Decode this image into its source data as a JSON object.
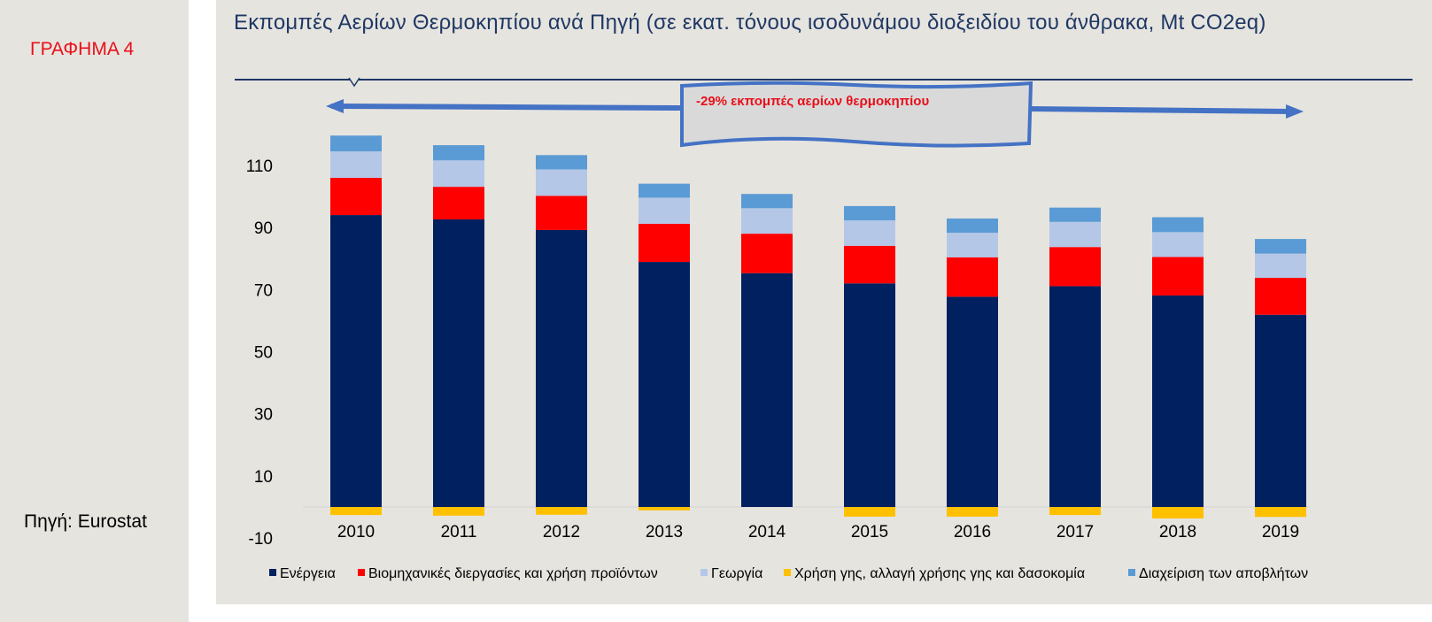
{
  "figure_label": "ΓΡΑΦΗΜΑ 4",
  "source": "Πηγή: Eurostat",
  "chart_data": {
    "type": "bar",
    "stacked": true,
    "title": "Εκπομπές Αερίων Θερμοκηπίου ανά Πηγή (σε εκατ. τόνους ισοδυνάμου διοξειδίου του άνθρακα, Mt CO2eq)",
    "annotation": "-29% εκπομπές αερίων θερμοκηπίου",
    "categories": [
      "2010",
      "2011",
      "2012",
      "2013",
      "2014",
      "2015",
      "2016",
      "2017",
      "2018",
      "2019"
    ],
    "y_ticks": [
      -10,
      10,
      30,
      50,
      70,
      90,
      110
    ],
    "ylim": [
      -10,
      120
    ],
    "grid": false,
    "legend_position": "bottom",
    "series": [
      {
        "name": "Ενέργεια",
        "color": "#002060",
        "values": [
          94,
          92.6,
          89.2,
          78.9,
          75.3,
          72,
          67.7,
          71.1,
          68.1,
          61.9
        ]
      },
      {
        "name": "Βιομηχανικές διεργασίες και χρήση προϊόντων",
        "color": "#ff0000",
        "values": [
          12,
          10.5,
          11,
          12.3,
          12.7,
          12.1,
          12.7,
          12.6,
          12.4,
          11.9
        ]
      },
      {
        "name": "Γεωργία",
        "color": "#b4c7e7",
        "values": [
          8.5,
          8.5,
          8.5,
          8.4,
          8.2,
          8.2,
          7.9,
          8.1,
          8,
          7.8
        ]
      },
      {
        "name": "Χρήση γης, αλλαγή χρήσης γης και δασοκομία",
        "color": "#ffc000",
        "values": [
          -2.6,
          -2.8,
          -2.5,
          -1.1,
          0,
          -3.1,
          -3.1,
          -2.6,
          -3.7,
          -3.2
        ]
      },
      {
        "name": "Διαχείριση των αποβλήτων",
        "color": "#5b9bd5",
        "values": [
          5.1,
          4.9,
          4.6,
          4.5,
          4.6,
          4.6,
          4.6,
          4.6,
          4.8,
          4.7
        ]
      }
    ]
  }
}
